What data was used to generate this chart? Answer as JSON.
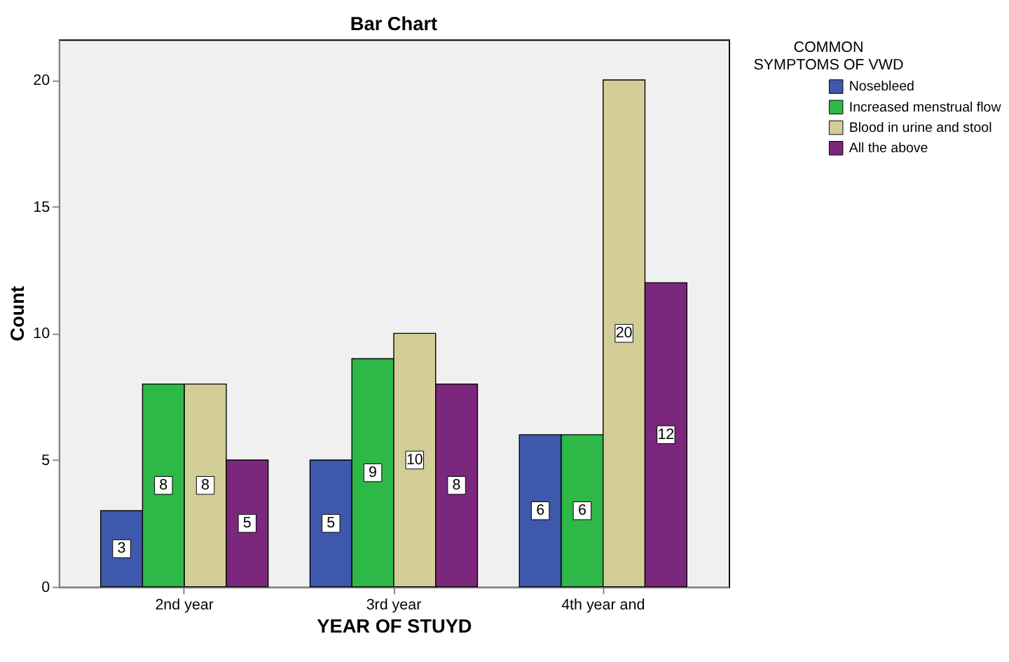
{
  "chart_data": {
    "type": "bar",
    "title": "Bar Chart",
    "xlabel": "YEAR OF STUYD",
    "ylabel": "Count",
    "legend_title": "COMMON SYMPTOMS OF VWD",
    "categories": [
      "2nd  year",
      "3rd year",
      "4th year and"
    ],
    "series": [
      {
        "name": "Nosebleed",
        "color": "#3e58ac",
        "values": [
          3,
          5,
          6
        ]
      },
      {
        "name": "Increased menstrual flow",
        "color": "#2eb848",
        "values": [
          8,
          9,
          6
        ]
      },
      {
        "name": "Blood in urine and stool",
        "color": "#d3ce97",
        "values": [
          8,
          10,
          20
        ]
      },
      {
        "name": "All the above",
        "color": "#7b277d",
        "values": [
          5,
          8,
          12
        ]
      }
    ],
    "ylim": [
      0,
      21.6
    ],
    "yticks": [
      0,
      5,
      10,
      15,
      20
    ],
    "grid": false,
    "legend": "top right",
    "data_labels": true
  }
}
